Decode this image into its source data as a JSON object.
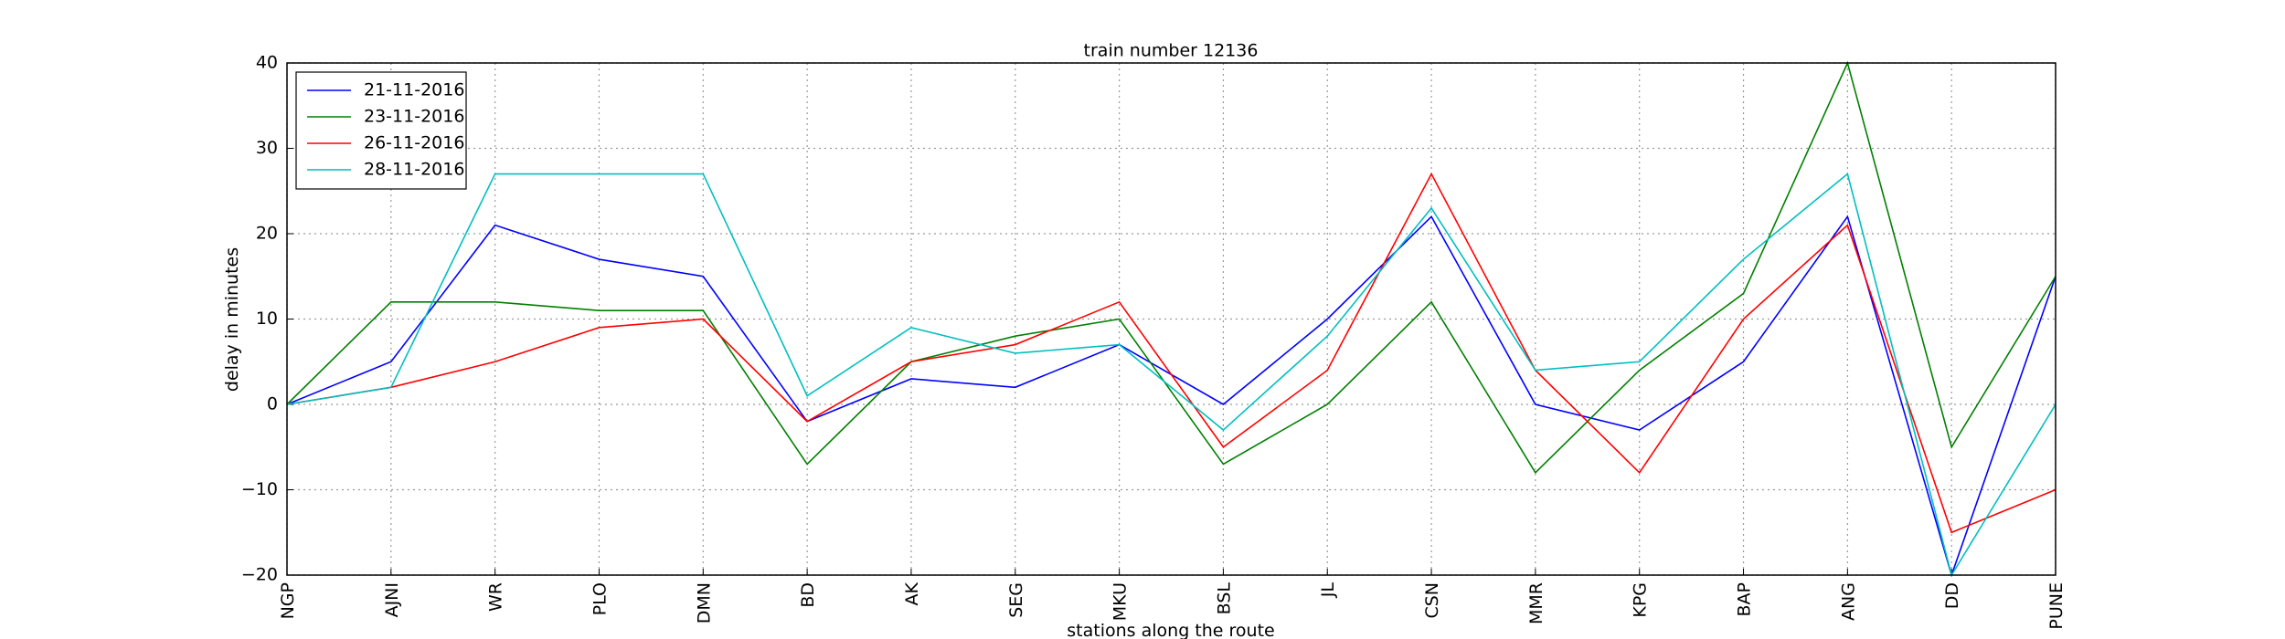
{
  "chart_data": {
    "type": "line",
    "title": "train number 12136",
    "x_label": "stations along the route",
    "y_label": "delay in minutes",
    "categories": [
      "NGP",
      "AJNI",
      "WR",
      "PLO",
      "DMN",
      "BD",
      "AK",
      "SEG",
      "MKU",
      "BSL",
      "JL",
      "CSN",
      "MMR",
      "KPG",
      "BAP",
      "ANG",
      "DD",
      "PUNE"
    ],
    "series": [
      {
        "name": "21-11-2016",
        "color": "#0000ff",
        "values": [
          0,
          5,
          21,
          17,
          15,
          -2,
          3,
          2,
          7,
          0,
          10,
          22,
          0,
          -3,
          5,
          22,
          -20,
          15
        ]
      },
      {
        "name": "23-11-2016",
        "color": "#008000",
        "values": [
          0,
          12,
          12,
          11,
          11,
          -7,
          5,
          8,
          10,
          -7,
          0,
          12,
          -8,
          4,
          13,
          40,
          -5,
          15
        ]
      },
      {
        "name": "26-11-2016",
        "color": "#ff0000",
        "values": [
          0,
          2,
          5,
          9,
          10,
          -2,
          5,
          7,
          12,
          -5,
          4,
          27,
          4,
          -8,
          10,
          21,
          -15,
          -10
        ]
      },
      {
        "name": "28-11-2016",
        "color": "#00bfbf",
        "values": [
          0,
          2,
          27,
          27,
          27,
          1,
          9,
          6,
          7,
          -3,
          8,
          23,
          4,
          5,
          17,
          27,
          -20,
          0
        ]
      }
    ],
    "ylim": [
      -20,
      40
    ],
    "yticks": [
      {
        "value": -20,
        "label": "−20"
      },
      {
        "value": -10,
        "label": "−10"
      },
      0,
      10,
      20,
      30,
      40
    ],
    "grid": true,
    "legend": "upper-left"
  }
}
